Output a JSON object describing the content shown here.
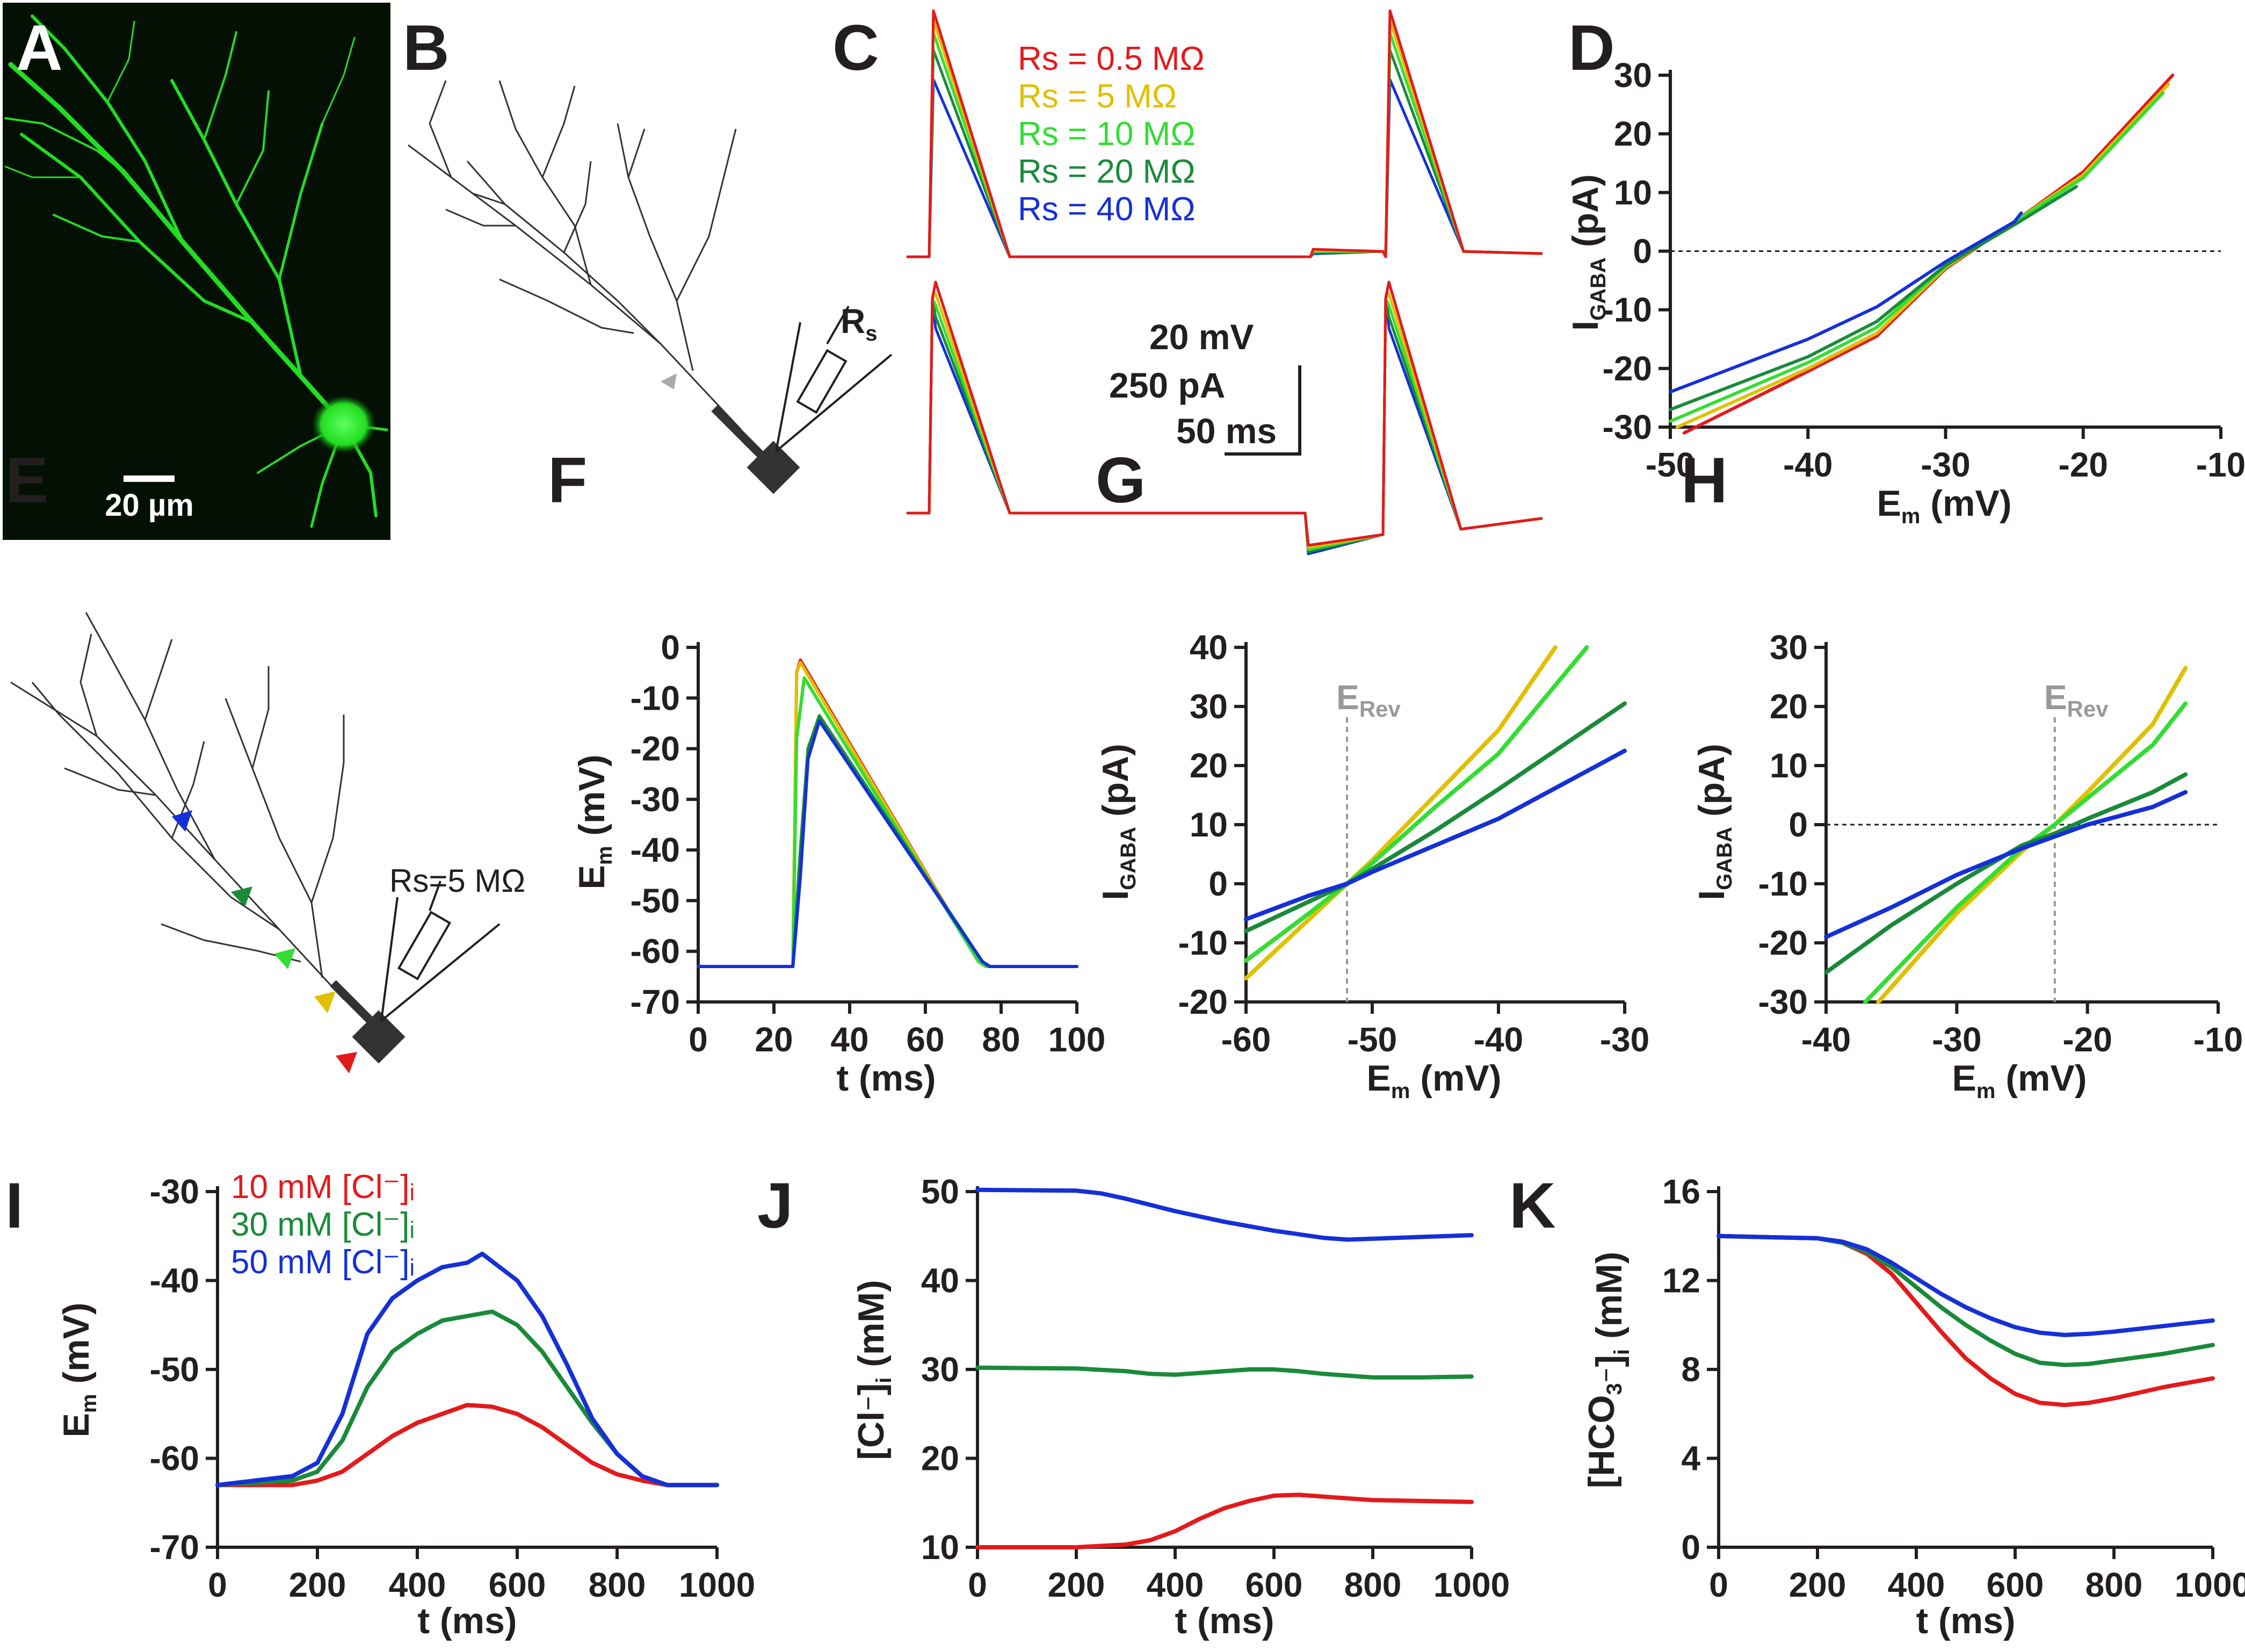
{
  "panel_labels": {
    "A": "A",
    "B": "B",
    "C": "C",
    "D": "D",
    "E": "E",
    "F": "F",
    "G": "G",
    "H": "H",
    "I": "I",
    "J": "J",
    "K": "K"
  },
  "colors": {
    "red": "#e31a1c",
    "yellow": "#e0c000",
    "lightgreen": "#33dd33",
    "darkgreen": "#1a8a3a",
    "blue": "#1530d8",
    "green_cell": "#22dd22",
    "gray": "#999999"
  },
  "panel_A": {
    "scale_bar": "20 µm"
  },
  "panel_B": {
    "electrode_label": "Rs"
  },
  "panel_C": {
    "legend": [
      {
        "text": "Rs = 0.5 MΩ",
        "color": "#e31a1c"
      },
      {
        "text": "Rs =    5 MΩ",
        "color": "#e0c000"
      },
      {
        "text": "Rs =  10 MΩ",
        "color": "#33dd33"
      },
      {
        "text": "Rs =  20 MΩ",
        "color": "#1a8a3a"
      },
      {
        "text": "Rs =  40 MΩ",
        "color": "#1530d8"
      }
    ],
    "scale_v": "20 mV",
    "scale_i": "250 pA",
    "scale_t": "50 ms",
    "peak_voltage_fraction": [
      1.0,
      0.96,
      0.91,
      0.84,
      0.72
    ],
    "peak_current_fraction": [
      1.0,
      0.95,
      0.9,
      0.85,
      0.8
    ]
  },
  "panel_E": {
    "electrode_label": "Rs=5 MΩ"
  },
  "chart_data": [
    {
      "id": "D",
      "type": "line",
      "xlabel": "Em (mV)",
      "ylabel": "IGABA (pA)",
      "xlim": [
        -50,
        -10
      ],
      "ylim": [
        -30,
        30
      ],
      "xticks": [
        "-50",
        "-40",
        "-30",
        "-20",
        "-10"
      ],
      "yticks": [
        "30",
        "20",
        "10",
        "0",
        "-10",
        "-20",
        "-30"
      ],
      "reference_line_y": 0,
      "series": [
        {
          "name": "Rs = 0.5 MΩ",
          "color": "#e31a1c",
          "x": [
            -49,
            -40,
            -35,
            -30,
            -25,
            -20,
            -13.5
          ],
          "y": [
            -31,
            -20.5,
            -14.5,
            -3,
            5,
            13.5,
            30
          ]
        },
        {
          "name": "Rs = 5 MΩ",
          "color": "#e0c000",
          "x": [
            -49.5,
            -40,
            -35,
            -30,
            -25,
            -20,
            -13.8
          ],
          "y": [
            -30,
            -20,
            -14,
            -2.8,
            5,
            13,
            28.5
          ]
        },
        {
          "name": "Rs = 10 MΩ",
          "color": "#33dd33",
          "x": [
            -50,
            -40,
            -35,
            -30,
            -25,
            -20,
            -14.2
          ],
          "y": [
            -29,
            -19,
            -13,
            -2.6,
            5,
            12.5,
            27
          ]
        },
        {
          "name": "Rs = 20 MΩ",
          "color": "#1a8a3a",
          "x": [
            -50,
            -40,
            -35,
            -30,
            -25,
            -20.5
          ],
          "y": [
            -27,
            -18,
            -12,
            -2.4,
            4.5,
            11
          ]
        },
        {
          "name": "Rs = 40 MΩ",
          "color": "#1530d8",
          "x": [
            -50,
            -40,
            -35,
            -30,
            -25,
            -24.5
          ],
          "y": [
            -24,
            -15,
            -9.5,
            -1.8,
            5,
            6.5
          ]
        }
      ]
    },
    {
      "id": "F",
      "type": "line",
      "xlabel": "t (ms)",
      "ylabel": "Em (mV)",
      "xlim": [
        0,
        100
      ],
      "ylim": [
        -70,
        0
      ],
      "xticks": [
        "0",
        "20",
        "40",
        "60",
        "80",
        "100"
      ],
      "yticks": [
        "0",
        "-10",
        "-20",
        "-30",
        "-40",
        "-50",
        "-60",
        "-70"
      ],
      "series": [
        {
          "name": "red",
          "color": "#e31a1c",
          "x": [
            0,
            25,
            26,
            27,
            74,
            76,
            100
          ],
          "y": [
            -63,
            -63,
            -5,
            -2.5,
            -62,
            -63,
            -63
          ]
        },
        {
          "name": "yellow",
          "color": "#e0c000",
          "x": [
            0,
            25,
            26,
            27,
            74,
            76,
            100
          ],
          "y": [
            -63,
            -63,
            -5,
            -3,
            -62,
            -63,
            -63
          ]
        },
        {
          "name": "lightgreen",
          "color": "#33dd33",
          "x": [
            0,
            25,
            26,
            28,
            74,
            76,
            100
          ],
          "y": [
            -63,
            -63,
            -18,
            -6,
            -62,
            -63,
            -63
          ]
        },
        {
          "name": "darkgreen",
          "color": "#1a8a3a",
          "x": [
            0,
            25,
            27,
            29,
            32,
            75,
            77,
            100
          ],
          "y": [
            -63,
            -63,
            -40,
            -20,
            -13.5,
            -62,
            -63,
            -63
          ]
        },
        {
          "name": "blue",
          "color": "#1530d8",
          "x": [
            0,
            25,
            27,
            29,
            32,
            75,
            77,
            100
          ],
          "y": [
            -63,
            -63,
            -45,
            -22,
            -14.5,
            -62,
            -63,
            -63
          ]
        }
      ]
    },
    {
      "id": "G",
      "type": "line",
      "xlabel": "Em (mV)",
      "ylabel": "IGABA (pA)",
      "xlim": [
        -60,
        -30
      ],
      "ylim": [
        -20,
        40
      ],
      "xticks": [
        "-60",
        "-50",
        "-40",
        "-30"
      ],
      "yticks": [
        "40",
        "30",
        "20",
        "10",
        "0",
        "-10",
        "-20"
      ],
      "vertical_marker": {
        "x": -52,
        "label": "ERev"
      },
      "series": [
        {
          "name": "yellow",
          "color": "#e0c000",
          "x": [
            -60,
            -55,
            -52,
            -50,
            -45,
            -40,
            -35.5
          ],
          "y": [
            -16,
            -6,
            0,
            4,
            15,
            26,
            40
          ]
        },
        {
          "name": "lightgreen",
          "color": "#33dd33",
          "x": [
            -60,
            -55,
            -52,
            -50,
            -45,
            -40,
            -33
          ],
          "y": [
            -13,
            -5,
            0,
            3.5,
            13,
            22,
            40
          ]
        },
        {
          "name": "darkgreen",
          "color": "#1a8a3a",
          "x": [
            -60,
            -55,
            -52,
            -50,
            -45,
            -40,
            -30
          ],
          "y": [
            -8,
            -3,
            0,
            2.5,
            9,
            16,
            30.5
          ]
        },
        {
          "name": "blue",
          "color": "#1530d8",
          "x": [
            -60,
            -55,
            -52,
            -50,
            -45,
            -40,
            -30
          ],
          "y": [
            -6,
            -2,
            0,
            2,
            6.5,
            11,
            22.5
          ]
        }
      ]
    },
    {
      "id": "H",
      "type": "line",
      "xlabel": "Em (mV)",
      "ylabel": "IGABA (pA)",
      "xlim": [
        -40,
        -10
      ],
      "ylim": [
        -30,
        30
      ],
      "xticks": [
        "-40",
        "-30",
        "-20",
        "-10"
      ],
      "yticks": [
        "30",
        "20",
        "10",
        "0",
        "-10",
        "-20",
        "-30"
      ],
      "reference_line_y": 0,
      "vertical_marker": {
        "x": -22.5,
        "label": "ERev"
      },
      "series": [
        {
          "name": "yellow",
          "color": "#e0c000",
          "x": [
            -36,
            -30,
            -25,
            -22.5,
            -20,
            -15,
            -12.5
          ],
          "y": [
            -30,
            -15,
            -4.5,
            0,
            5.5,
            17,
            26.5
          ]
        },
        {
          "name": "lightgreen",
          "color": "#33dd33",
          "x": [
            -37,
            -30,
            -25,
            -22.5,
            -20,
            -15,
            -12.5
          ],
          "y": [
            -30,
            -14,
            -4,
            0,
            4.5,
            13.5,
            20.5
          ]
        },
        {
          "name": "darkgreen",
          "color": "#1a8a3a",
          "x": [
            -40,
            -35,
            -30,
            -25,
            -22.5,
            -20,
            -15,
            -12.5
          ],
          "y": [
            -25,
            -17,
            -10,
            -3.5,
            -1.5,
            1,
            5.5,
            8.5
          ]
        },
        {
          "name": "blue",
          "color": "#1530d8",
          "x": [
            -40,
            -35,
            -30,
            -25,
            -22.5,
            -20,
            -15,
            -12.5
          ],
          "y": [
            -19,
            -14,
            -8.5,
            -4,
            -2,
            0,
            3,
            5.5
          ]
        }
      ]
    },
    {
      "id": "I",
      "type": "line",
      "xlabel": "t (ms)",
      "ylabel": "Em (mV)",
      "xlim": [
        0,
        1000
      ],
      "ylim": [
        -70,
        -30
      ],
      "xticks": [
        "0",
        "200",
        "400",
        "600",
        "800",
        "1000"
      ],
      "yticks": [
        "-30",
        "-40",
        "-50",
        "-60",
        "-70"
      ],
      "legend": [
        {
          "text": "10 mM [Cl⁻]ᵢ",
          "color": "#e31a1c"
        },
        {
          "text": "30 mM [Cl⁻]ᵢ",
          "color": "#1a8a3a"
        },
        {
          "text": "50 mM [Cl⁻]ᵢ",
          "color": "#1530d8"
        }
      ],
      "series": [
        {
          "name": "10 mM [Cl-]i",
          "color": "#e31a1c",
          "x": [
            0,
            150,
            200,
            250,
            300,
            350,
            400,
            450,
            500,
            550,
            600,
            650,
            700,
            750,
            800,
            850,
            900,
            1000
          ],
          "y": [
            -63,
            -63,
            -62.5,
            -61.5,
            -59.5,
            -57.5,
            -56,
            -55,
            -54,
            -54.2,
            -55,
            -56.5,
            -58.5,
            -60.5,
            -61.8,
            -62.5,
            -63,
            -63
          ]
        },
        {
          "name": "30 mM [Cl-]i",
          "color": "#1a8a3a",
          "x": [
            0,
            150,
            200,
            250,
            300,
            350,
            400,
            450,
            500,
            550,
            600,
            650,
            700,
            750,
            800,
            850,
            900,
            1000
          ],
          "y": [
            -63,
            -62.5,
            -61.5,
            -58,
            -52,
            -48,
            -46,
            -44.5,
            -44,
            -43.5,
            -45,
            -48,
            -52,
            -56,
            -59.5,
            -62,
            -63,
            -63
          ]
        },
        {
          "name": "50 mM [Cl-]i",
          "color": "#1530d8",
          "x": [
            0,
            150,
            200,
            250,
            300,
            350,
            400,
            450,
            500,
            530,
            600,
            650,
            700,
            750,
            800,
            850,
            900,
            1000
          ],
          "y": [
            -63,
            -62,
            -60.5,
            -55,
            -46,
            -42,
            -40,
            -38.5,
            -38,
            -37,
            -40,
            -44,
            -49.5,
            -55.5,
            -59.5,
            -62,
            -63,
            -63
          ]
        }
      ]
    },
    {
      "id": "J",
      "type": "line",
      "xlabel": "t (ms)",
      "ylabel": "[Cl⁻]ᵢ (mM)",
      "xlim": [
        0,
        1000
      ],
      "ylim": [
        10,
        50
      ],
      "xticks": [
        "0",
        "200",
        "400",
        "600",
        "800",
        "1000"
      ],
      "yticks": [
        "50",
        "40",
        "30",
        "20",
        "10"
      ],
      "series": [
        {
          "name": "10 mM",
          "color": "#e31a1c",
          "x": [
            0,
            200,
            300,
            350,
            400,
            450,
            500,
            550,
            600,
            650,
            700,
            800,
            900,
            1000
          ],
          "y": [
            10,
            10,
            10.3,
            10.8,
            11.8,
            13.2,
            14.4,
            15.2,
            15.8,
            15.9,
            15.7,
            15.3,
            15.2,
            15.1
          ]
        },
        {
          "name": "30 mM",
          "color": "#1a8a3a",
          "x": [
            0,
            200,
            300,
            350,
            400,
            450,
            500,
            550,
            600,
            650,
            700,
            800,
            900,
            1000
          ],
          "y": [
            30.2,
            30.1,
            29.8,
            29.5,
            29.4,
            29.6,
            29.8,
            30,
            30,
            29.8,
            29.5,
            29.1,
            29.1,
            29.2
          ]
        },
        {
          "name": "50 mM",
          "color": "#1530d8",
          "x": [
            0,
            200,
            250,
            300,
            350,
            400,
            450,
            500,
            550,
            600,
            650,
            700,
            750,
            800,
            900,
            1000
          ],
          "y": [
            50.2,
            50.1,
            49.8,
            49.2,
            48.5,
            47.8,
            47.2,
            46.6,
            46.1,
            45.6,
            45.2,
            44.8,
            44.6,
            44.7,
            44.9,
            45.1
          ]
        }
      ]
    },
    {
      "id": "K",
      "type": "line",
      "xlabel": "t (ms)",
      "ylabel": "[HCO₃⁻]ᵢ (mM)",
      "xlim": [
        0,
        1000
      ],
      "ylim": [
        0,
        16
      ],
      "xticks": [
        "0",
        "200",
        "400",
        "600",
        "800",
        "1000"
      ],
      "yticks": [
        "16",
        "12",
        "8",
        "4",
        "0"
      ],
      "series": [
        {
          "name": "red",
          "color": "#e31a1c",
          "x": [
            0,
            200,
            250,
            300,
            350,
            400,
            450,
            500,
            550,
            600,
            650,
            700,
            750,
            800,
            900,
            1000
          ],
          "y": [
            14,
            13.9,
            13.7,
            13.2,
            12.3,
            11,
            9.7,
            8.5,
            7.6,
            6.9,
            6.5,
            6.4,
            6.5,
            6.7,
            7.2,
            7.6
          ]
        },
        {
          "name": "green",
          "color": "#1a8a3a",
          "x": [
            0,
            200,
            250,
            300,
            350,
            400,
            450,
            500,
            550,
            600,
            650,
            700,
            750,
            800,
            900,
            1000
          ],
          "y": [
            14,
            13.9,
            13.7,
            13.3,
            12.6,
            11.7,
            10.8,
            10,
            9.3,
            8.7,
            8.3,
            8.2,
            8.25,
            8.4,
            8.7,
            9.1
          ]
        },
        {
          "name": "blue",
          "color": "#1530d8",
          "x": [
            0,
            200,
            250,
            300,
            350,
            400,
            450,
            500,
            550,
            600,
            650,
            700,
            750,
            800,
            900,
            1000
          ],
          "y": [
            14,
            13.9,
            13.75,
            13.4,
            12.8,
            12.1,
            11.4,
            10.8,
            10.3,
            9.9,
            9.65,
            9.55,
            9.6,
            9.7,
            9.95,
            10.2
          ]
        }
      ]
    }
  ]
}
